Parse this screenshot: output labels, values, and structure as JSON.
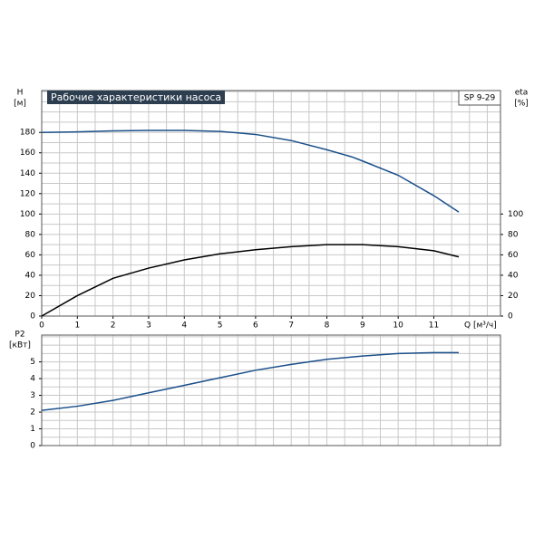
{
  "chart_data": [
    {
      "type": "line",
      "title": "Рабочие характеристики насоса",
      "model": "SP 9-29",
      "ylabel": "H",
      "yunit": "[м]",
      "y2label": "eta",
      "y2unit": "[%]",
      "xlabel": "Q [м³/ч]",
      "x": [
        0,
        1,
        2,
        3,
        4,
        5,
        6,
        7,
        8,
        8.7,
        9,
        10,
        11,
        11.7
      ],
      "xlim": [
        0,
        12.87
      ],
      "xticks": [
        0,
        1,
        2,
        3,
        4,
        5,
        6,
        7,
        8,
        9,
        10,
        11
      ],
      "xgrid_step": 0.5,
      "ylim": [
        0,
        221
      ],
      "yticks": [
        0,
        20,
        40,
        60,
        80,
        100,
        120,
        140,
        160,
        180
      ],
      "ygrid_step": 10,
      "y2lim": [
        0,
        221
      ],
      "y2ticks": [
        0,
        20,
        40,
        60,
        80,
        100
      ],
      "series": [
        {
          "color": "#1a4f8a",
          "values": [
            180,
            180.5,
            181.5,
            182,
            182,
            181,
            178,
            172,
            163,
            156,
            152,
            138,
            118,
            102
          ]
        },
        {
          "color": "#000000",
          "axis": "y2",
          "values": [
            0,
            20,
            37,
            47,
            55,
            61,
            65,
            68,
            70,
            70,
            70,
            68,
            64,
            58
          ]
        }
      ]
    },
    {
      "type": "line",
      "ylabel": "P2",
      "yunit": "[кВт]",
      "x": [
        0,
        1,
        2,
        3,
        4,
        5,
        6,
        7,
        8,
        9,
        10,
        11,
        11.7
      ],
      "xlim": [
        0,
        12.87
      ],
      "xgrid_step": 0.5,
      "ylim": [
        0,
        6.6
      ],
      "yticks": [
        0,
        1,
        2,
        3,
        4,
        5
      ],
      "ygrid_step": 0.5,
      "series": [
        {
          "color": "#1a4f8a",
          "values": [
            2.1,
            2.35,
            2.7,
            3.15,
            3.6,
            4.05,
            4.5,
            4.85,
            5.15,
            5.35,
            5.5,
            5.55,
            5.55
          ]
        }
      ]
    }
  ]
}
